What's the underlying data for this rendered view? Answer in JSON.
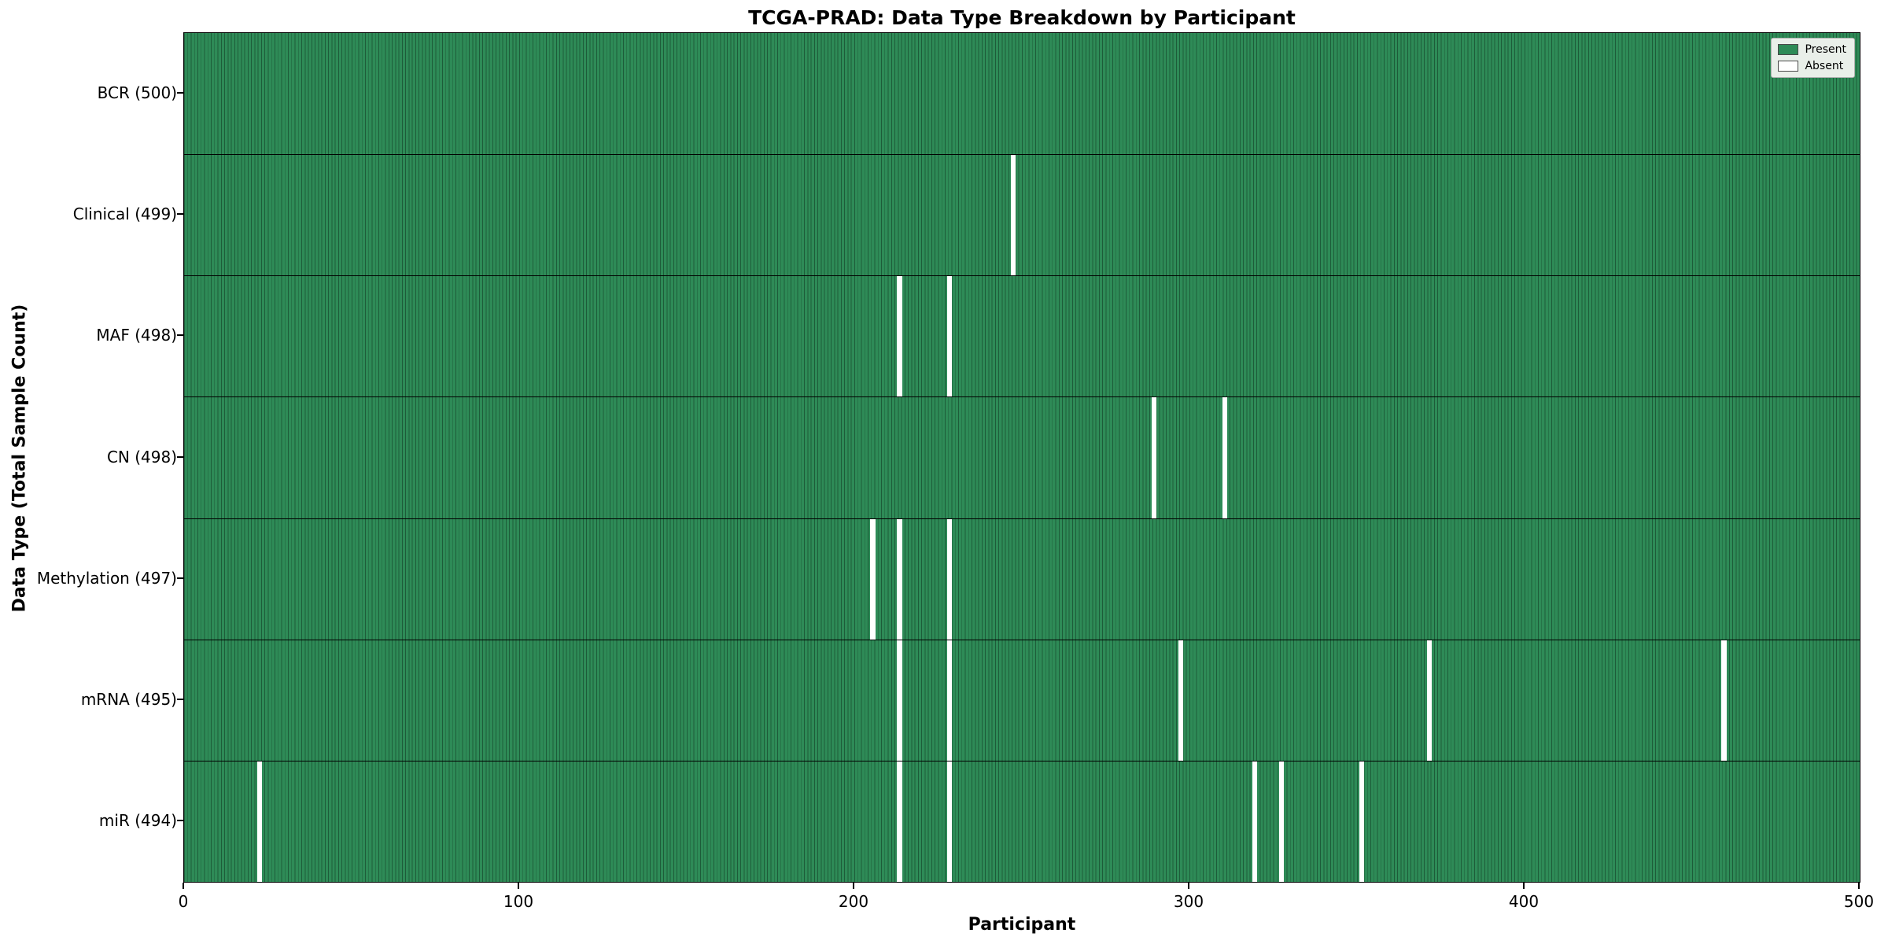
{
  "chart_data": {
    "type": "heatmap",
    "title": "TCGA-PRAD: Data Type Breakdown by Participant",
    "xlabel": "Participant",
    "ylabel": "Data Type (Total Sample Count)",
    "x_range": [
      0,
      500
    ],
    "x_ticks": [
      0,
      100,
      200,
      300,
      400,
      500
    ],
    "n_participants": 500,
    "legend": [
      {
        "label": "Present",
        "color": "#2e8b57"
      },
      {
        "label": "Absent",
        "color": "#ffffff"
      }
    ],
    "colors": {
      "present": "#2e8b57",
      "present_edge": "#1d5c39",
      "absent": "#ffffff",
      "row_separator": "#000000"
    },
    "rows": [
      {
        "label": "BCR (500)",
        "total": 500,
        "absent_participants": []
      },
      {
        "label": "Clinical (499)",
        "total": 499,
        "absent_participants": [
          247
        ]
      },
      {
        "label": "MAF (498)",
        "total": 498,
        "absent_participants": [
          213,
          228
        ]
      },
      {
        "label": "CN (498)",
        "total": 498,
        "absent_participants": [
          289,
          310
        ]
      },
      {
        "label": "Methylation (497)",
        "total": 497,
        "absent_participants": [
          205,
          213,
          228
        ]
      },
      {
        "label": "mRNA (495)",
        "total": 495,
        "absent_participants": [
          213,
          228,
          297,
          371,
          459
        ]
      },
      {
        "label": "miR (494)",
        "total": 494,
        "absent_participants": [
          22,
          213,
          228,
          319,
          327,
          351
        ]
      }
    ]
  }
}
